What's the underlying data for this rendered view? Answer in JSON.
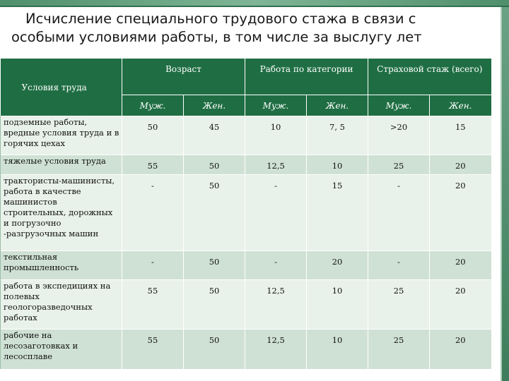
{
  "slide": {
    "title_line1": "Исчисление специального трудового стажа в связи с",
    "title_line2": "особыми условиями работы, в том числе за выслугу лет"
  },
  "table": {
    "label_header": "Условия труда",
    "groups": [
      "Возраст",
      "Работа по категории",
      "Страховой стаж (всего)"
    ],
    "subheaders": [
      "Муж.",
      "Жен.",
      "Муж.",
      "Жен.",
      "Муж.",
      "Жен."
    ],
    "rows": [
      {
        "label": "подземные работы, вредные условия труда и в горячих цехах",
        "values": [
          "50",
          "45",
          "10",
          "7, 5",
          ">20",
          "15"
        ]
      },
      {
        "label": "тяжелые условия труда",
        "values": [
          "55",
          "50",
          "12,5",
          "10",
          "25",
          "20"
        ]
      },
      {
        "label": "трактористы-машинисты, работа в качестве машинистов строительных, дорожных и погрузочно -разгрузочных машин",
        "values": [
          "-",
          "50",
          "-",
          "15",
          "-",
          "20"
        ]
      },
      {
        "label": "текстильная промышленность",
        "values": [
          "-",
          "50",
          "-",
          "20",
          "-",
          "20"
        ]
      },
      {
        "label": "работа в экспедициях на полевых геологоразведочных работах",
        "values": [
          "55",
          "50",
          "12,5",
          "10",
          "25",
          "20"
        ]
      },
      {
        "label": "рабочие на лесозаготовках и лесосплаве",
        "values": [
          "55",
          "50",
          "12,5",
          "10",
          "25",
          "20"
        ]
      }
    ]
  },
  "colors": {
    "header_bg": "#1f6e43",
    "row_light": "#e8f1ea",
    "row_dark": "#cfe1d4",
    "accent_bar": "#3e7d5b"
  }
}
